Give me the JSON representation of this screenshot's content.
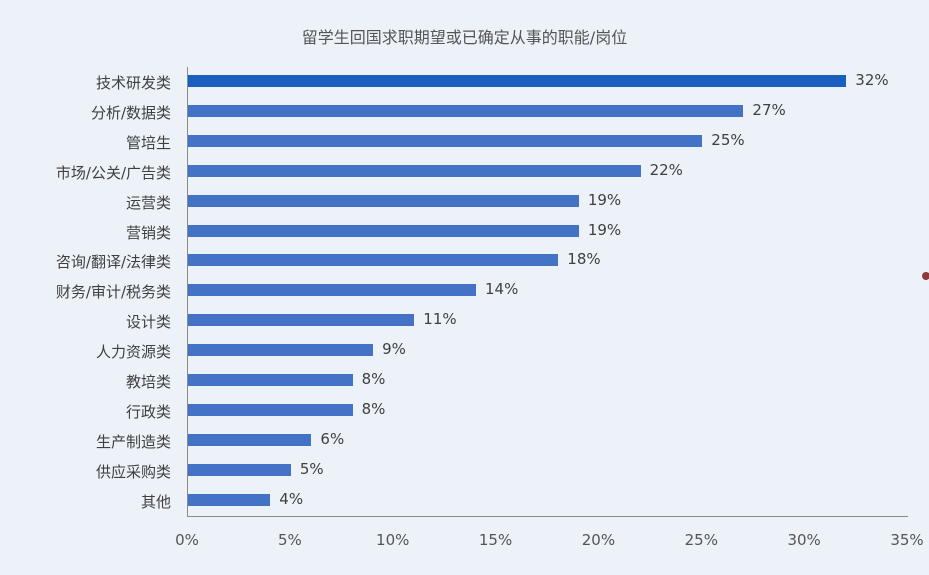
{
  "chart_data": {
    "type": "bar",
    "orientation": "horizontal",
    "title": "留学生回国求职期望或已确定从事的职能/岗位",
    "xlabel": "",
    "ylabel": "",
    "xlim": [
      0,
      35
    ],
    "x_ticks": [
      "0%",
      "5%",
      "10%",
      "15%",
      "20%",
      "25%",
      "30%",
      "35%"
    ],
    "grid": false,
    "legend": null,
    "categories": [
      "技术研发类",
      "分析/数据类",
      "管培生",
      "市场/公关/广告类",
      "运营类",
      "营销类",
      "咨询/翻译/法律类",
      "财务/审计/税务类",
      "设计类",
      "人力资源类",
      "教培类",
      "行政类",
      "生产制造类",
      "供应采购类",
      "其他"
    ],
    "values": [
      32,
      27,
      25,
      22,
      19,
      19,
      18,
      14,
      11,
      9,
      8,
      8,
      6,
      5,
      4
    ],
    "labels": [
      "32%",
      "27%",
      "25%",
      "22%",
      "19%",
      "19%",
      "18%",
      "14%",
      "11%",
      "9%",
      "8%",
      "8%",
      "6%",
      "5%",
      "4%"
    ],
    "colors": {
      "highlight": "#1a5fbf",
      "default": "#4472c4"
    }
  }
}
